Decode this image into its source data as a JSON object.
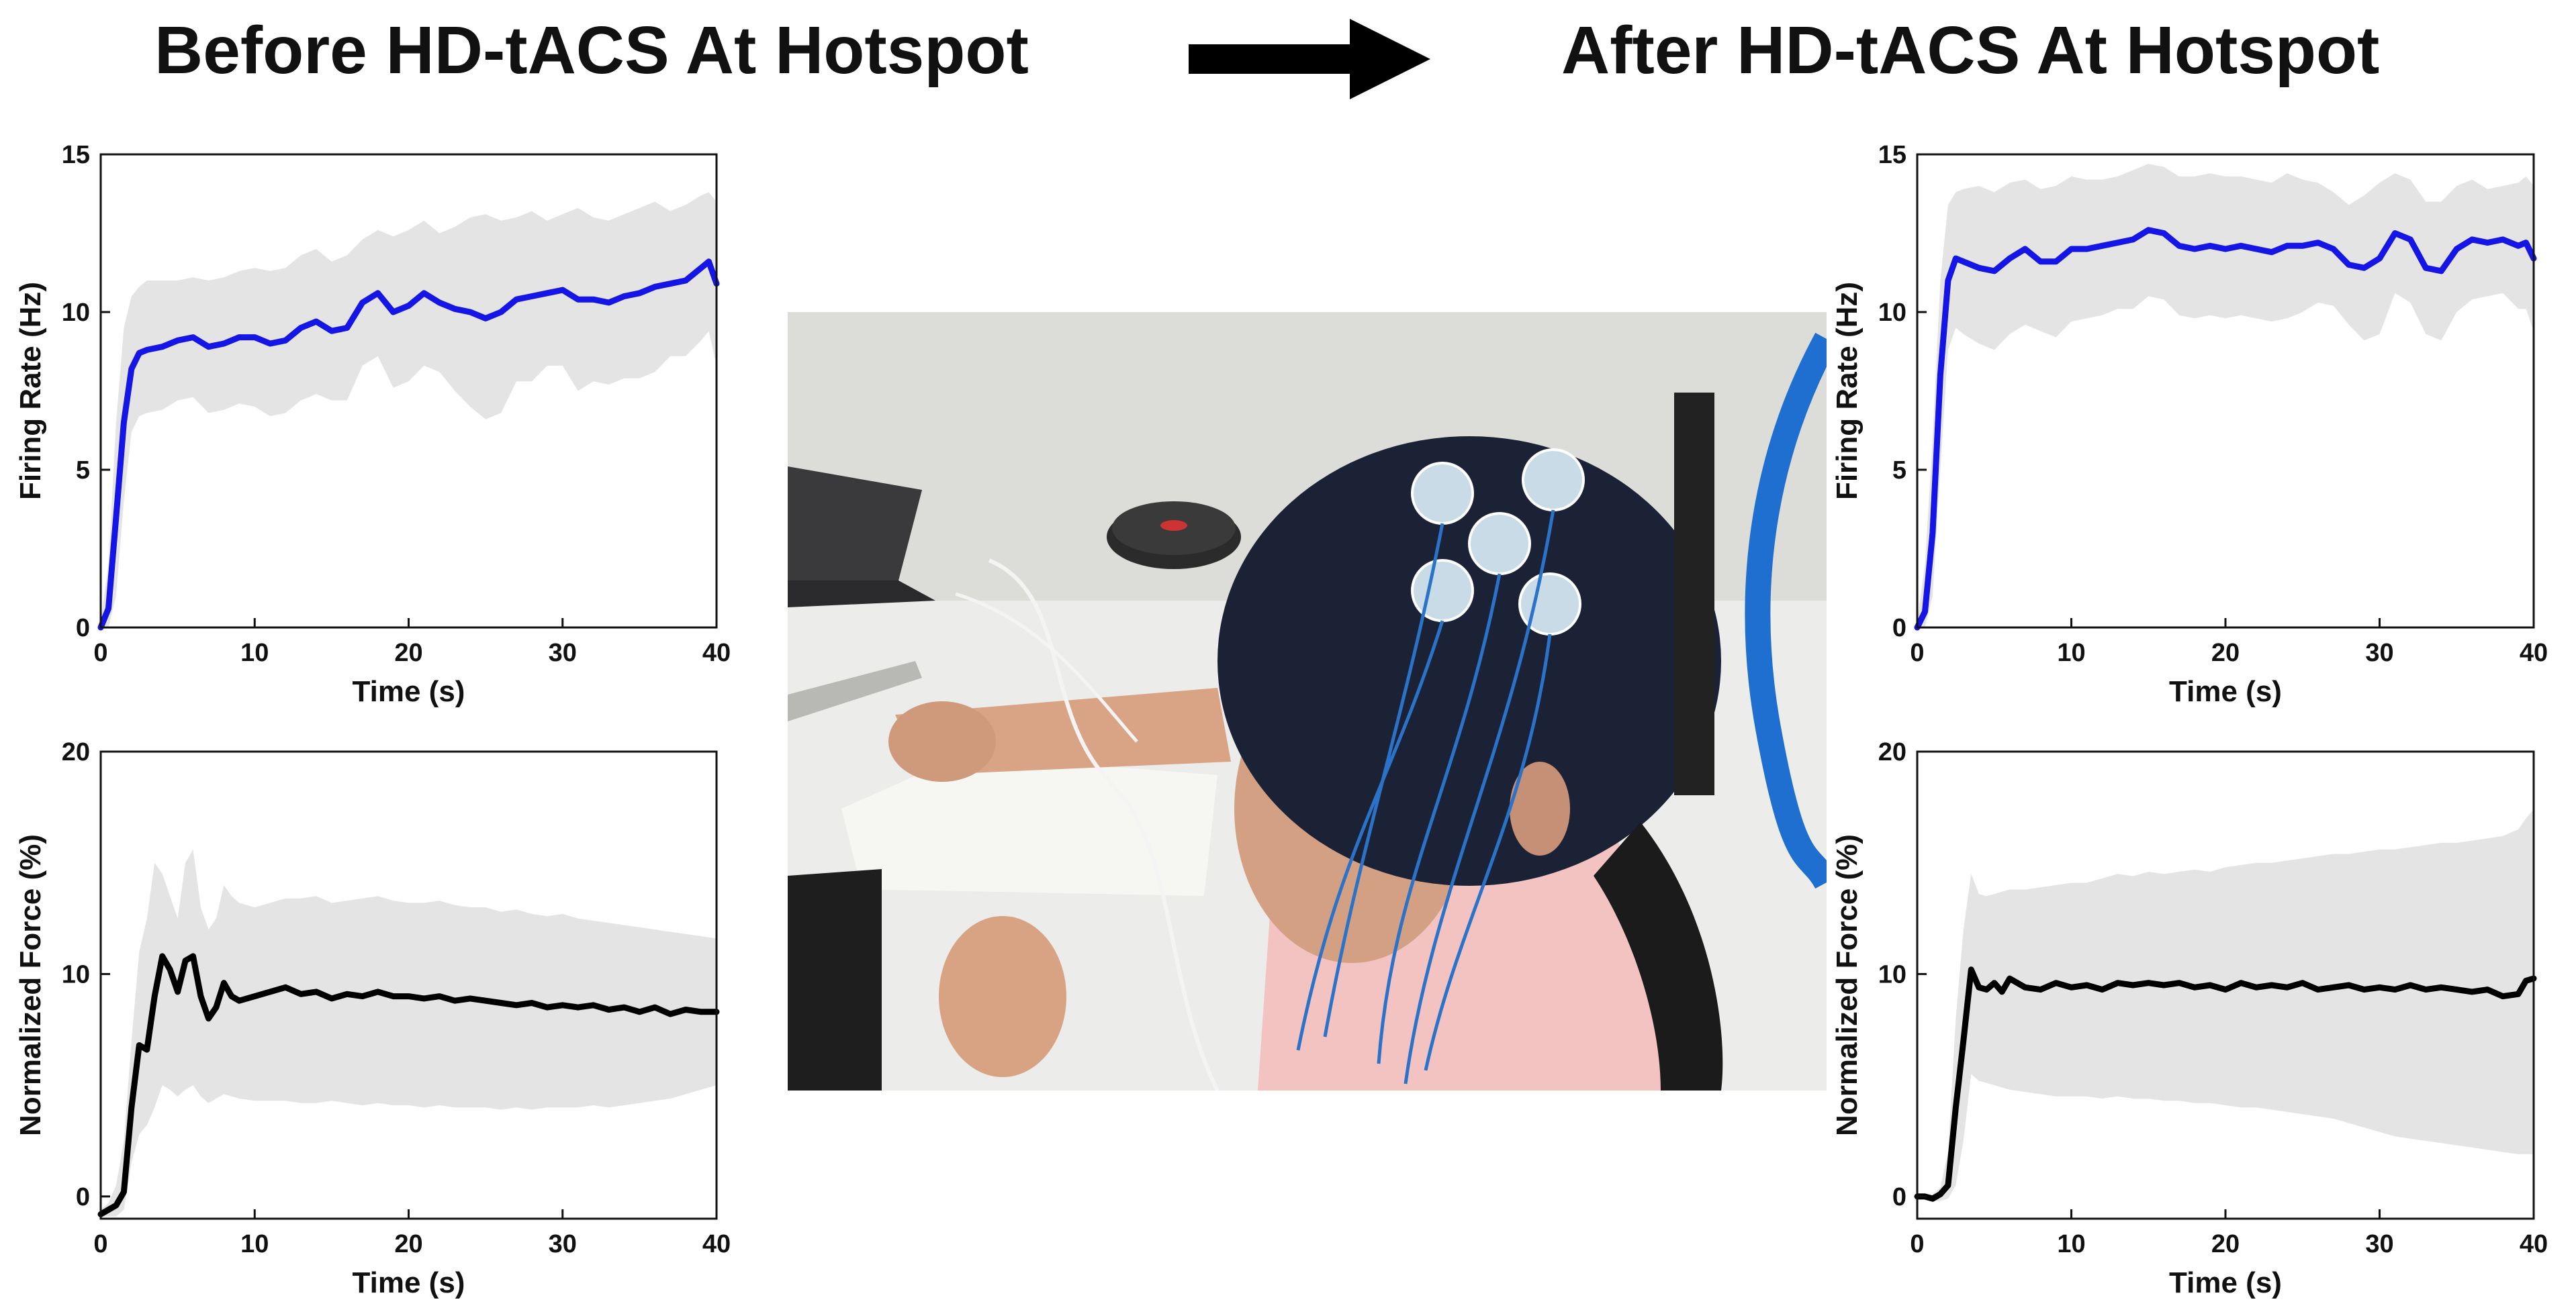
{
  "headings": {
    "before": "Before HD-tACS At Hotspot",
    "after": "After HD-tACS At Hotspot"
  },
  "icons": {
    "arrow": "right-arrow-icon"
  },
  "photo": {
    "subject": "participant-wearing-eeg-cap-with-hd-tacs-electrodes"
  },
  "colors": {
    "firing_line": "#1515e6",
    "force_line": "#000000",
    "band": "#e4e4e4"
  },
  "chart_data": [
    {
      "id": "before-firing",
      "type": "line",
      "xlabel": "Time (s)",
      "ylabel": "Firing Rate (Hz)",
      "xlim": [
        0,
        40
      ],
      "ylim": [
        0,
        15
      ],
      "xticks": [
        0,
        10,
        20,
        30,
        40
      ],
      "yticks": [
        0,
        5,
        10,
        15
      ],
      "color": "#1515e6",
      "x": [
        0,
        0.5,
        1,
        1.5,
        2,
        2.5,
        3,
        4,
        5,
        6,
        7,
        8,
        9,
        10,
        11,
        12,
        13,
        14,
        15,
        16,
        17,
        18,
        19,
        20,
        21,
        22,
        23,
        24,
        25,
        26,
        27,
        28,
        29,
        30,
        31,
        32,
        33,
        34,
        35,
        36,
        37,
        38,
        39,
        39.5,
        40
      ],
      "y": [
        0,
        0.6,
        3.5,
        6.5,
        8.2,
        8.7,
        8.8,
        8.9,
        9.1,
        9.2,
        8.9,
        9.0,
        9.2,
        9.2,
        9.0,
        9.1,
        9.5,
        9.7,
        9.4,
        9.5,
        10.3,
        10.6,
        10.0,
        10.2,
        10.6,
        10.3,
        10.1,
        10.0,
        9.8,
        10.0,
        10.4,
        10.5,
        10.6,
        10.7,
        10.4,
        10.4,
        10.3,
        10.5,
        10.6,
        10.8,
        10.9,
        11.0,
        11.4,
        11.6,
        10.9
      ],
      "upper": [
        0.2,
        2.0,
        6.5,
        9.5,
        10.5,
        10.8,
        11.0,
        11.0,
        11.0,
        11.1,
        11.0,
        11.1,
        11.3,
        11.4,
        11.3,
        11.4,
        11.8,
        12.0,
        11.6,
        11.8,
        12.3,
        12.6,
        12.4,
        12.6,
        12.9,
        12.5,
        12.7,
        13.0,
        13.1,
        12.9,
        13.0,
        13.2,
        12.9,
        13.1,
        13.3,
        13.0,
        12.9,
        13.1,
        13.3,
        13.5,
        13.2,
        13.4,
        13.7,
        13.8,
        13.5
      ],
      "lower": [
        0,
        0,
        1.0,
        4.0,
        6.2,
        6.7,
        6.8,
        6.9,
        7.2,
        7.3,
        6.8,
        6.9,
        7.1,
        7.0,
        6.7,
        6.8,
        7.2,
        7.4,
        7.2,
        7.2,
        8.3,
        8.6,
        7.6,
        7.8,
        8.3,
        8.1,
        7.5,
        7.0,
        6.6,
        6.8,
        7.8,
        7.8,
        8.3,
        8.3,
        7.5,
        7.8,
        7.7,
        7.9,
        7.9,
        8.1,
        8.6,
        8.6,
        9.1,
        9.4,
        8.3
      ]
    },
    {
      "id": "before-force",
      "type": "line",
      "xlabel": "Time (s)",
      "ylabel": "Normalized Force (%)",
      "xlim": [
        0,
        40
      ],
      "ylim": [
        -1,
        20
      ],
      "xticks": [
        0,
        10,
        20,
        30,
        40
      ],
      "yticks": [
        0,
        10,
        20
      ],
      "color": "#000000",
      "x": [
        0,
        0.5,
        1,
        1.5,
        2,
        2.5,
        3,
        3.5,
        4,
        4.5,
        5,
        5.5,
        6,
        6.5,
        7,
        7.5,
        8,
        8.5,
        9,
        10,
        11,
        12,
        13,
        14,
        15,
        16,
        17,
        18,
        19,
        20,
        21,
        22,
        23,
        24,
        25,
        26,
        27,
        28,
        29,
        30,
        31,
        32,
        33,
        34,
        35,
        36,
        37,
        38,
        39,
        40
      ],
      "y": [
        -0.8,
        -0.6,
        -0.4,
        0.2,
        4.0,
        6.8,
        6.6,
        9.0,
        10.8,
        10.2,
        9.2,
        10.6,
        10.8,
        9.0,
        8.0,
        8.5,
        9.6,
        9.0,
        8.8,
        9.0,
        9.2,
        9.4,
        9.1,
        9.2,
        8.9,
        9.1,
        9.0,
        9.2,
        9.0,
        9.0,
        8.9,
        9.0,
        8.8,
        8.9,
        8.8,
        8.7,
        8.6,
        8.7,
        8.5,
        8.6,
        8.5,
        8.6,
        8.4,
        8.5,
        8.3,
        8.5,
        8.2,
        8.4,
        8.3,
        8.3
      ],
      "upper": [
        -0.6,
        -0.3,
        0.5,
        2.5,
        7.0,
        11.0,
        12.5,
        15.0,
        14.5,
        13.5,
        12.5,
        15.0,
        15.6,
        13.0,
        12.0,
        12.5,
        14.0,
        13.5,
        13.2,
        13.0,
        13.2,
        13.4,
        13.4,
        13.5,
        13.2,
        13.3,
        13.4,
        13.5,
        13.3,
        13.2,
        13.2,
        13.3,
        13.1,
        13.0,
        13.0,
        12.8,
        12.9,
        12.7,
        12.6,
        12.7,
        12.5,
        12.4,
        12.3,
        12.2,
        12.1,
        12.0,
        11.9,
        11.8,
        11.7,
        11.6
      ],
      "lower": [
        -0.9,
        -0.9,
        -0.9,
        -0.6,
        1.5,
        2.8,
        3.2,
        4.0,
        5.0,
        4.8,
        4.5,
        4.8,
        5.0,
        4.5,
        4.2,
        4.4,
        4.6,
        4.5,
        4.4,
        4.3,
        4.3,
        4.3,
        4.2,
        4.2,
        4.3,
        4.2,
        4.1,
        4.2,
        4.1,
        4.1,
        4.0,
        4.1,
        4.0,
        4.0,
        4.0,
        3.9,
        4.0,
        3.9,
        4.0,
        4.0,
        4.0,
        4.1,
        4.0,
        4.1,
        4.2,
        4.3,
        4.4,
        4.6,
        4.8,
        5.0
      ]
    },
    {
      "id": "after-firing",
      "type": "line",
      "xlabel": "Time (s)",
      "ylabel": "Firing Rate (Hz)",
      "xlim": [
        0,
        40
      ],
      "ylim": [
        0,
        15
      ],
      "xticks": [
        0,
        10,
        20,
        30,
        40
      ],
      "yticks": [
        0,
        5,
        10,
        15
      ],
      "color": "#1515e6",
      "x": [
        0,
        0.5,
        1,
        1.5,
        2,
        2.5,
        3,
        4,
        5,
        6,
        7,
        8,
        9,
        10,
        11,
        12,
        13,
        14,
        15,
        16,
        17,
        18,
        19,
        20,
        21,
        22,
        23,
        24,
        25,
        26,
        27,
        28,
        29,
        30,
        31,
        32,
        33,
        34,
        35,
        36,
        37,
        38,
        39,
        39.5,
        40
      ],
      "y": [
        0,
        0.5,
        3.0,
        8.0,
        11.0,
        11.7,
        11.6,
        11.4,
        11.3,
        11.7,
        12.0,
        11.6,
        11.6,
        12.0,
        12.0,
        12.1,
        12.2,
        12.3,
        12.6,
        12.5,
        12.1,
        12.0,
        12.1,
        12.0,
        12.1,
        12.0,
        11.9,
        12.1,
        12.1,
        12.2,
        12.0,
        11.5,
        11.4,
        11.7,
        12.5,
        12.3,
        11.4,
        11.3,
        12.0,
        12.3,
        12.2,
        12.3,
        12.1,
        12.2,
        11.7
      ],
      "upper": [
        0.2,
        2.0,
        6.0,
        11.0,
        13.4,
        13.8,
        13.9,
        14.0,
        13.8,
        14.1,
        14.2,
        13.9,
        14.0,
        14.3,
        14.2,
        14.2,
        14.3,
        14.5,
        14.7,
        14.6,
        14.3,
        14.3,
        14.4,
        14.3,
        14.3,
        14.2,
        14.1,
        14.4,
        14.2,
        14.1,
        13.8,
        13.4,
        13.7,
        14.1,
        14.4,
        14.2,
        13.5,
        13.5,
        14.0,
        14.2,
        13.9,
        14.0,
        14.1,
        14.3,
        14.0
      ],
      "lower": [
        0,
        0,
        1.0,
        5.0,
        8.8,
        9.5,
        9.3,
        9.0,
        8.8,
        9.3,
        9.6,
        9.4,
        9.2,
        9.7,
        9.8,
        9.9,
        10.1,
        10.1,
        10.5,
        10.4,
        9.9,
        9.8,
        9.9,
        9.8,
        9.9,
        9.8,
        9.7,
        9.8,
        10.0,
        10.3,
        10.2,
        9.6,
        9.1,
        9.3,
        10.6,
        10.3,
        9.3,
        9.1,
        10.0,
        10.4,
        10.5,
        10.6,
        10.1,
        10.1,
        9.4
      ]
    },
    {
      "id": "after-force",
      "type": "line",
      "xlabel": "Time (s)",
      "ylabel": "Normalized Force (%)",
      "xlim": [
        0,
        40
      ],
      "ylim": [
        -1,
        20
      ],
      "xticks": [
        0,
        10,
        20,
        30,
        40
      ],
      "yticks": [
        0,
        10,
        20
      ],
      "color": "#000000",
      "x": [
        0,
        0.5,
        1,
        1.5,
        2,
        2.5,
        3,
        3.5,
        4,
        4.5,
        5,
        5.5,
        6,
        7,
        8,
        9,
        10,
        11,
        12,
        13,
        14,
        15,
        16,
        17,
        18,
        19,
        20,
        21,
        22,
        23,
        24,
        25,
        26,
        27,
        28,
        29,
        30,
        31,
        32,
        33,
        34,
        35,
        36,
        37,
        38,
        39,
        39.5,
        40
      ],
      "y": [
        0,
        0,
        -0.1,
        0.1,
        0.5,
        4.0,
        7.0,
        10.2,
        9.4,
        9.3,
        9.6,
        9.2,
        9.8,
        9.4,
        9.3,
        9.6,
        9.4,
        9.5,
        9.3,
        9.6,
        9.5,
        9.6,
        9.5,
        9.6,
        9.4,
        9.5,
        9.3,
        9.6,
        9.4,
        9.5,
        9.4,
        9.6,
        9.3,
        9.4,
        9.5,
        9.3,
        9.4,
        9.3,
        9.5,
        9.3,
        9.4,
        9.3,
        9.2,
        9.3,
        9.0,
        9.1,
        9.7,
        9.8
      ],
      "upper": [
        0,
        0.1,
        0.1,
        0.4,
        2.0,
        8.0,
        12.0,
        14.5,
        13.6,
        13.5,
        13.6,
        13.7,
        13.8,
        13.8,
        13.9,
        14.0,
        14.1,
        14.1,
        14.3,
        14.5,
        14.4,
        14.6,
        14.5,
        14.6,
        14.7,
        14.6,
        14.8,
        14.9,
        15.0,
        15.0,
        15.1,
        15.2,
        15.3,
        15.4,
        15.4,
        15.5,
        15.6,
        15.6,
        15.7,
        15.8,
        15.9,
        15.9,
        16.0,
        16.1,
        16.2,
        16.5,
        17.0,
        17.4
      ],
      "lower": [
        -0.1,
        -0.1,
        -0.2,
        -0.2,
        -0.1,
        0.5,
        2.5,
        5.5,
        5.2,
        5.1,
        5.0,
        4.9,
        4.8,
        4.7,
        4.6,
        4.5,
        4.5,
        4.5,
        4.4,
        4.5,
        4.4,
        4.4,
        4.3,
        4.3,
        4.2,
        4.2,
        4.1,
        4.0,
        4.0,
        3.9,
        3.8,
        3.7,
        3.6,
        3.5,
        3.3,
        3.1,
        2.9,
        2.7,
        2.6,
        2.5,
        2.4,
        2.3,
        2.2,
        2.1,
        2.0,
        1.9,
        1.9,
        1.9
      ]
    }
  ]
}
